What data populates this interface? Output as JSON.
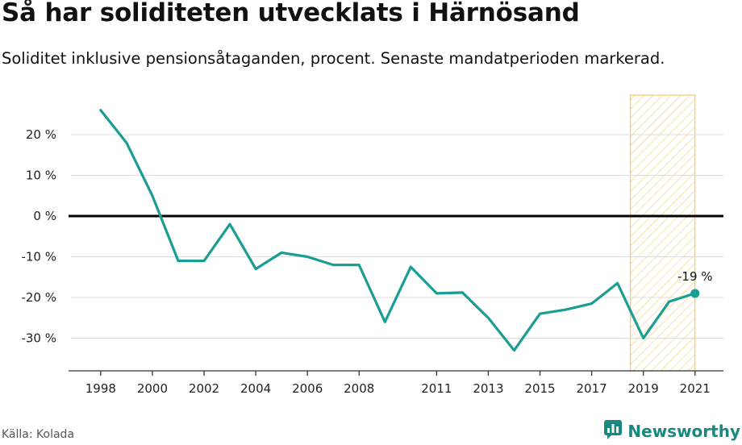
{
  "title": "Så har soliditeten utvecklats i Härnösand",
  "subtitle": "Soliditet inklusive pensionsåtaganden, procent. Senaste mandatperioden markerad.",
  "source": "Källa: Kolada",
  "brand": {
    "name": "Newsworthy",
    "icon": "newsworthy-logo-icon"
  },
  "colors": {
    "line": "#1a9d93",
    "highlight_stroke": "#f5c96a",
    "highlight_hatch": "#f7d98f",
    "zero_line": "#000000",
    "grid": "#dddddd"
  },
  "chart_data": {
    "type": "line",
    "title": "Så har soliditeten utvecklats i Härnösand",
    "subtitle": "Soliditet inklusive pensionsåtaganden, procent. Senaste mandatperioden markerad.",
    "unit": "%",
    "x": [
      1998,
      1999,
      2000,
      2001,
      2002,
      2003,
      2004,
      2005,
      2006,
      2007,
      2008,
      2009,
      2010,
      2011,
      2012,
      2013,
      2014,
      2015,
      2016,
      2017,
      2018,
      2019,
      2020,
      2021
    ],
    "series": [
      {
        "values": [
          26,
          18,
          5,
          -11,
          -11,
          -2,
          -13,
          -9,
          -10,
          -12,
          -12,
          -26,
          -12.5,
          -19,
          -18.8,
          -25,
          -33,
          -24,
          -23,
          -21.5,
          -16.5,
          -30,
          -21,
          -19
        ]
      }
    ],
    "xticks": [
      1998,
      2000,
      2002,
      2004,
      2006,
      2008,
      2011,
      2013,
      2015,
      2017,
      2019,
      2021
    ],
    "xtick_labels": [
      "1998",
      "2000",
      "2002",
      "2004",
      "2006",
      "2008",
      "2011",
      "2013",
      "2015",
      "2017",
      "2019",
      "2021"
    ],
    "yticks": [
      20,
      10,
      0,
      -10,
      -20,
      -30
    ],
    "ytick_labels": [
      "20 %",
      "10 %",
      "0 %",
      "-10 %",
      "-20 %",
      "-30 %"
    ],
    "ylim": [
      -38,
      30
    ],
    "xlim": [
      1997,
      2022
    ],
    "highlight": {
      "from": 2018.5,
      "to": 2021
    },
    "last_point_label": "-19 %",
    "grid": true,
    "zero_line": true,
    "legend": "none"
  }
}
